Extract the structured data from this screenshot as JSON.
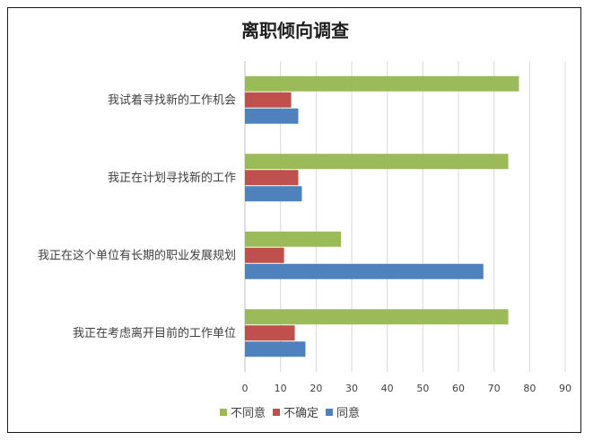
{
  "chart_data": {
    "type": "bar",
    "orientation": "horizontal",
    "title": "离职倾向调查",
    "categories": [
      "我试着寻找新的工作机会",
      "我正在计划寻找新的工作",
      "我正在这个单位有长期的职业发展规划",
      "我正在考虑离开目前的工作单位"
    ],
    "series": [
      {
        "name": "不同意",
        "color": "#9BBB59",
        "values": [
          77,
          74,
          27,
          74
        ]
      },
      {
        "name": "不确定",
        "color": "#C0504D",
        "values": [
          13,
          15,
          11,
          14
        ]
      },
      {
        "name": "同意",
        "color": "#4F81BD",
        "values": [
          15,
          16,
          67,
          17
        ]
      }
    ],
    "xlim": [
      0,
      90
    ],
    "xticks": [
      "0",
      "10",
      "20",
      "30",
      "40",
      "50",
      "60",
      "70",
      "80",
      "90"
    ],
    "grid": true,
    "legend": "bottom"
  }
}
